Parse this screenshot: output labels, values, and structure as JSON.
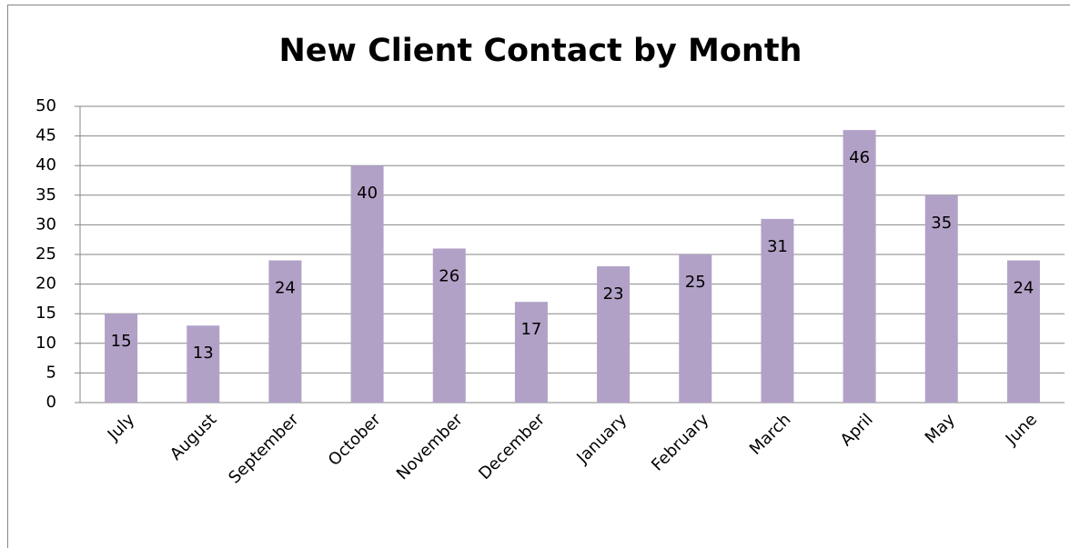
{
  "chart_data": {
    "type": "bar",
    "title": "New Client Contact by Month",
    "categories": [
      "July",
      "August",
      "September",
      "October",
      "November",
      "December",
      "January",
      "February",
      "March",
      "April",
      "May",
      "June"
    ],
    "values": [
      15,
      13,
      24,
      40,
      26,
      17,
      23,
      25,
      31,
      46,
      35,
      24
    ],
    "color": "#b2a1c7",
    "ylim": [
      0,
      50
    ],
    "yticks": [
      0,
      5,
      10,
      15,
      20,
      25,
      30,
      35,
      40,
      45,
      50
    ],
    "grid": true
  }
}
